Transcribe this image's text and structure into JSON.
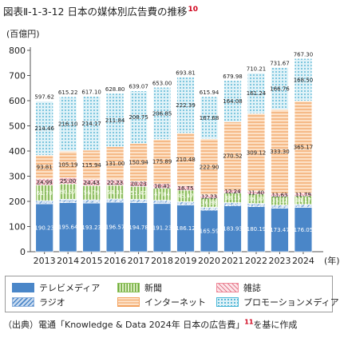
{
  "header": {
    "title": "図表Ⅱ-1-3-12 日本の媒体別広告費の推移",
    "footnote": "10"
  },
  "source": {
    "text_before": "（出典）電通「Knowledge & Data 2024年 日本の広告費」",
    "footnote": "11",
    "text_after": "を基に作成"
  },
  "chart_data": {
    "type": "bar",
    "stacked": true,
    "ylabel": "(百億円)",
    "ylim": [
      0,
      800
    ],
    "yticks": [
      0,
      100,
      200,
      300,
      400,
      500,
      600,
      700,
      800
    ],
    "xlabel": "(年)",
    "grid": false,
    "legend_position": "bottom",
    "categories": [
      "2013",
      "2014",
      "2015",
      "2016",
      "2017",
      "2018",
      "2019",
      "2020",
      "2021",
      "2022",
      "2023",
      "2024"
    ],
    "totals": [
      597.62,
      615.22,
      617.1,
      628.8,
      639.07,
      653.0,
      693.81,
      615.94,
      679.98,
      710.21,
      731.67,
      767.3
    ],
    "series": [
      {
        "name": "テレビメディア",
        "key": "tv",
        "color": "#4a86c8",
        "values": [
          190.23,
          195.64,
          193.23,
          196.57,
          194.78,
          191.23,
          186.12,
          165.59,
          183.93,
          180.19,
          173.47,
          176.05
        ]
      },
      {
        "name": "ラジオ",
        "key": "radio",
        "color": "#8cb0dc",
        "values": [
          12.43,
          12.72,
          12.54,
          12.85,
          12.9,
          12.78,
          12.6,
          10.66,
          11.06,
          11.29,
          11.39,
          11.62
        ]
      },
      {
        "name": "新聞",
        "key": "newspaper",
        "color": "#8fc45a",
        "values": [
          61.7,
          60.57,
          56.79,
          54.31,
          51.47,
          47.84,
          45.47,
          36.88,
          38.15,
          36.97,
          35.12,
          34.17
        ]
      },
      {
        "name": "雑誌",
        "key": "magazine",
        "color": "#f08a9a",
        "values": [
          24.99,
          25.0,
          24.43,
          22.23,
          20.23,
          18.41,
          16.75,
          12.23,
          12.24,
          11.4,
          11.63,
          11.79
        ]
      },
      {
        "name": "インターネット",
        "key": "internet",
        "color": "#f4a460",
        "values": [
          93.81,
          105.19,
          115.94,
          131.0,
          150.94,
          175.89,
          210.48,
          222.9,
          270.52,
          309.12,
          333.3,
          365.17
        ]
      },
      {
        "name": "プロモーションメディア",
        "key": "promo",
        "color": "#4cb8d8",
        "values": [
          214.46,
          216.1,
          214.17,
          211.84,
          208.75,
          206.85,
          222.39,
          167.68,
          164.08,
          161.24,
          166.76,
          168.5
        ]
      }
    ],
    "legend_rows": [
      [
        "tv",
        "newspaper",
        "magazine"
      ],
      [
        "radio",
        "internet",
        "promo"
      ]
    ]
  }
}
